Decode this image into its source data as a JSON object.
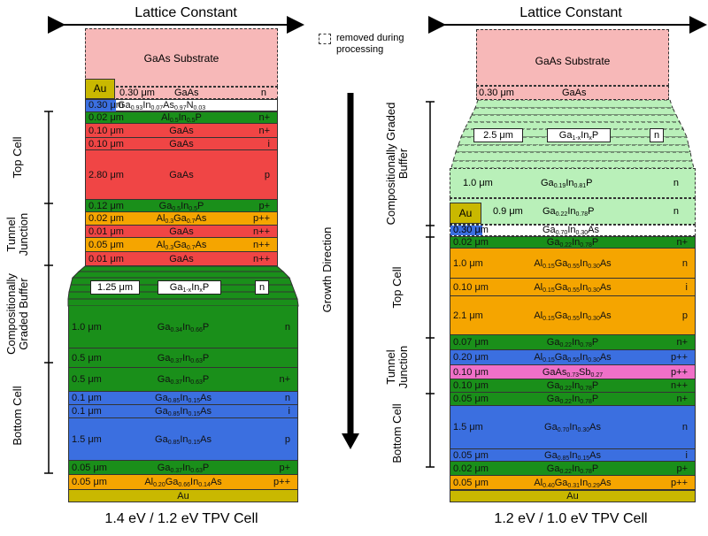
{
  "lattice_label": "Lattice Constant",
  "growth_label": "Growth Direction",
  "legend_text": "removed during processing",
  "left": {
    "caption": "1.4 eV / 1.2 eV TPV Cell",
    "substrate": "GaAs Substrate",
    "au_top": "Au",
    "au_bottom": "Au",
    "groups": {
      "top": "Top Cell",
      "tunnel": "Tunnel Junction",
      "buffer": "Compositionally Graded Buffer",
      "bottom": "Bottom Cell"
    },
    "graded": {
      "thickness": "1.25 μm",
      "doping": "n"
    },
    "removed_layer": {
      "thickness": "0.30 μm",
      "material": "GaAs",
      "doping": "n"
    },
    "contact_layer": {
      "thickness": "0.30 μm"
    },
    "layers": [
      {
        "t": "0.02 μm",
        "d": "n+",
        "color": "#1a8f1a"
      },
      {
        "t": "0.10 μm",
        "d": "n+",
        "color": "#f04545"
      },
      {
        "t": "0.10 μm",
        "d": "i",
        "color": "#f04545"
      },
      {
        "t": "2.80 μm",
        "d": "p",
        "color": "#f04545"
      },
      {
        "t": "0.12 μm",
        "d": "p+",
        "color": "#1a8f1a"
      },
      {
        "t": "0.02 μm",
        "d": "p++",
        "color": "#f5a500"
      },
      {
        "t": "0.01 μm",
        "d": "n++",
        "color": "#f04545"
      },
      {
        "t": "0.05 μm",
        "d": "n++",
        "color": "#f5a500"
      },
      {
        "t": "0.01 μm",
        "d": "n++",
        "color": "#f04545"
      },
      {
        "t": "1.0 μm",
        "d": "n",
        "color": "#1a8f1a"
      },
      {
        "t": "0.5 μm",
        "d": "",
        "color": "#1a8f1a"
      },
      {
        "t": "0.5 μm",
        "d": "n+",
        "color": "#1a8f1a"
      },
      {
        "t": "0.1 μm",
        "d": "n",
        "color": "#3b6fe0"
      },
      {
        "t": "0.1 μm",
        "d": "i",
        "color": "#3b6fe0"
      },
      {
        "t": "1.5 μm",
        "d": "p",
        "color": "#3b6fe0"
      },
      {
        "t": "0.05 μm",
        "d": "p+",
        "color": "#1a8f1a"
      },
      {
        "t": "0.05 μm",
        "d": "p++",
        "color": "#f5a500"
      }
    ]
  },
  "right": {
    "caption": "1.2 eV / 1.0 eV TPV Cell",
    "substrate": "GaAs Substrate",
    "au_top": "Au",
    "au_bottom": "Au",
    "groups": {
      "buffer": "Compositionally Graded Buffer",
      "top": "Top Cell",
      "tunnel": "Tunnel Junction",
      "bottom": "Bottom Cell"
    },
    "removed_layer": {
      "thickness": "0.30 μm",
      "material": "GaAs"
    },
    "graded": {
      "thickness": "2.5 μm",
      "doping": "n"
    },
    "buffer_layers": [
      {
        "t": "1.0 μm",
        "d": "n"
      },
      {
        "t": "0.9 μm",
        "d": "n"
      }
    ],
    "contact_layer": {
      "thickness": "0.30 μm"
    },
    "layers": [
      {
        "t": "0.02 μm",
        "d": "n+",
        "color": "#1a8f1a"
      },
      {
        "t": "1.0 μm",
        "d": "n",
        "color": "#f5a500"
      },
      {
        "t": "0.10 μm",
        "d": "i",
        "color": "#f5a500"
      },
      {
        "t": "2.1 μm",
        "d": "p",
        "color": "#f5a500"
      },
      {
        "t": "0.07 μm",
        "d": "n+",
        "color": "#1a8f1a"
      },
      {
        "t": "0.20 μm",
        "d": "p++",
        "color": "#3b6fe0"
      },
      {
        "t": "0.10 μm",
        "d": "p++",
        "color": "#f070c8"
      },
      {
        "t": "0.10 μm",
        "d": "n++",
        "color": "#1a8f1a"
      },
      {
        "t": "0.05 μm",
        "d": "n+",
        "color": "#1a8f1a"
      },
      {
        "t": "1.5 μm",
        "d": "n",
        "color": "#3b6fe0"
      },
      {
        "t": "0.05 μm",
        "d": "i",
        "color": "#3b6fe0"
      },
      {
        "t": "0.02 μm",
        "d": "p+",
        "color": "#1a8f1a"
      },
      {
        "t": "0.05 μm",
        "d": "p++",
        "color": "#f5a500"
      }
    ]
  }
}
